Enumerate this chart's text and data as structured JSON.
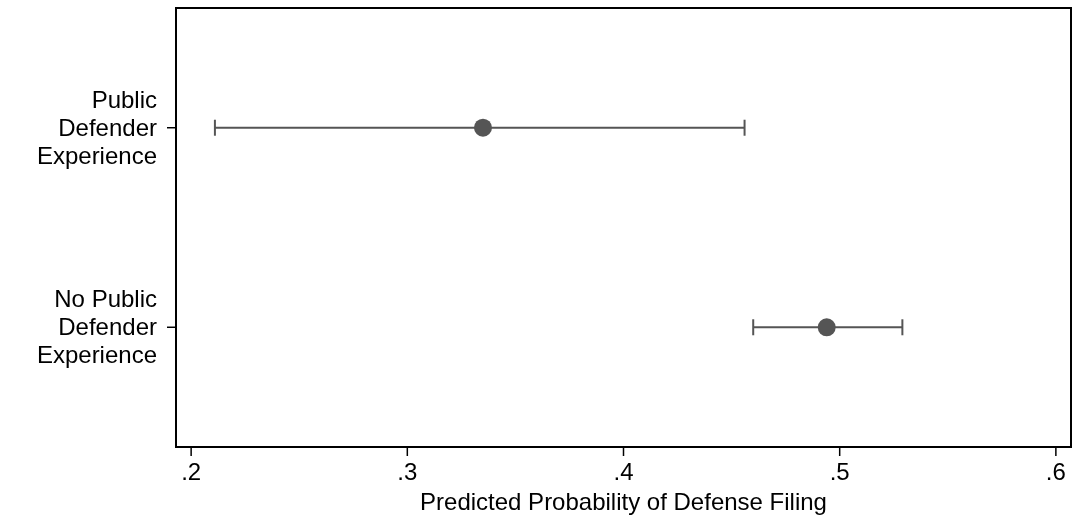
{
  "chart_data": {
    "type": "scatter",
    "orientation": "horizontal",
    "xlabel": "Predicted Probability of Defense Filing",
    "categories": [
      "Public Defender Experience",
      "No Public Defender Experience"
    ],
    "series": [
      {
        "color": "#555555",
        "values": [
          0.335,
          0.494
        ],
        "errors": [
          [
            0.211,
            0.456
          ],
          [
            0.46,
            0.529
          ]
        ]
      }
    ],
    "xlim": [
      0.193,
      0.607
    ],
    "xticks": [
      {
        "value": 0.2,
        "label": ".2"
      },
      {
        "value": 0.3,
        "label": ".3"
      },
      {
        "value": 0.4,
        "label": ".4"
      },
      {
        "value": 0.5,
        "label": ".5"
      },
      {
        "value": 0.6,
        "label": ".6"
      }
    ],
    "marker": "circle"
  }
}
